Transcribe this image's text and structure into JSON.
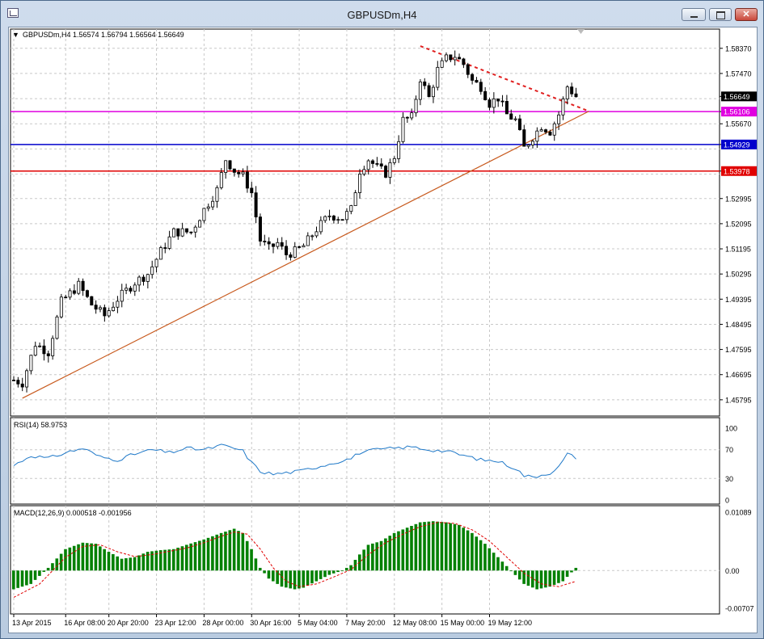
{
  "window": {
    "title": "GBPUSDm,H4",
    "buttons": {
      "minimize": "minimize-icon",
      "maximize": "maximize-icon",
      "close": "close-icon"
    },
    "close_glyph": "✕"
  },
  "chart_header": {
    "menu_glyph": "▼",
    "symbol_info": "GBPUSDm,H4  1.56574 1.56794 1.56564 1.56649"
  },
  "price_axis": {
    "labels": [
      "1.58370",
      "1.57470",
      "1.56649",
      "1.56106",
      "1.55670",
      "1.54929",
      "1.53978",
      "1.52995",
      "1.52095",
      "1.51195",
      "1.50295",
      "1.49395",
      "1.48495",
      "1.47595",
      "1.46695",
      "1.45795"
    ],
    "current_price": "1.56649"
  },
  "horizontal_lines": [
    {
      "name": "magenta-level",
      "price": 1.56106,
      "label": "1.56106",
      "color": "#e000e0"
    },
    {
      "name": "blue-level",
      "price": 1.54929,
      "label": "1.54929",
      "color": "#0000cc"
    },
    {
      "name": "red-level",
      "price": 1.53978,
      "label": "1.53978",
      "color": "#e00000"
    }
  ],
  "trendlines": [
    {
      "name": "support-trendline",
      "color": "#c85a1e",
      "style": "solid",
      "from": {
        "bar": 2,
        "price": 1.4585
      },
      "to": {
        "bar": 133,
        "price": 1.5612
      }
    },
    {
      "name": "resistance-trendline",
      "color": "#e02020",
      "style": "dashed",
      "from": {
        "bar": 94,
        "price": 1.5845
      },
      "to": {
        "bar": 133,
        "price": 1.5612
      }
    }
  ],
  "time_axis": {
    "labels": [
      {
        "bar": 0,
        "label": "13 Apr 2015"
      },
      {
        "bar": 12,
        "label": "16 Apr 08:00"
      },
      {
        "bar": 22,
        "label": "20 Apr 20:00"
      },
      {
        "bar": 33,
        "label": "23 Apr 12:00"
      },
      {
        "bar": 44,
        "label": "28 Apr 00:00"
      },
      {
        "bar": 55,
        "label": "30 Apr 16:00"
      },
      {
        "bar": 66,
        "label": "5 May 04:00"
      },
      {
        "bar": 77,
        "label": "7 May 20:00"
      },
      {
        "bar": 88,
        "label": "12 May 08:00"
      },
      {
        "bar": 99,
        "label": "15 May 00:00"
      },
      {
        "bar": 110,
        "label": "19 May 12:00"
      }
    ]
  },
  "rsi": {
    "label": "RSI(14) 58.9753",
    "levels": [
      "100",
      "70",
      "30",
      "0"
    ],
    "color": "#1e78c8"
  },
  "macd": {
    "label": "MACD(12,26,9) 0.000518 -0.001956",
    "levels": [
      "0.01089",
      "0.00",
      "-0.00707"
    ],
    "histogram_color": "#008000",
    "signal_color": "#e00000"
  },
  "chart_data": {
    "type": "candlestick",
    "symbol": "GBPUSDm",
    "timeframe": "H4",
    "ylim": [
      1.453,
      1.59
    ],
    "close_anchors": [
      [
        0,
        1.465
      ],
      [
        2,
        1.464
      ],
      [
        5,
        1.478
      ],
      [
        8,
        1.475
      ],
      [
        11,
        1.493
      ],
      [
        15,
        1.499
      ],
      [
        18,
        1.492
      ],
      [
        21,
        1.488
      ],
      [
        24,
        1.494
      ],
      [
        28,
        1.5
      ],
      [
        31,
        1.503
      ],
      [
        34,
        1.511
      ],
      [
        37,
        1.518
      ],
      [
        41,
        1.518
      ],
      [
        44,
        1.526
      ],
      [
        47,
        1.533
      ],
      [
        49,
        1.544
      ],
      [
        51,
        1.54
      ],
      [
        53,
        1.538
      ],
      [
        55,
        1.532
      ],
      [
        57,
        1.515
      ],
      [
        59,
        1.512
      ],
      [
        61,
        1.514
      ],
      [
        63,
        1.51
      ],
      [
        65,
        1.511
      ],
      [
        67,
        1.513
      ],
      [
        70,
        1.519
      ],
      [
        73,
        1.524
      ],
      [
        76,
        1.523
      ],
      [
        78,
        1.526
      ],
      [
        80,
        1.54
      ],
      [
        82,
        1.544
      ],
      [
        84,
        1.541
      ],
      [
        86,
        1.539
      ],
      [
        88,
        1.545
      ],
      [
        90,
        1.558
      ],
      [
        92,
        1.559
      ],
      [
        94,
        1.573
      ],
      [
        96,
        1.566
      ],
      [
        98,
        1.576
      ],
      [
        100,
        1.58
      ],
      [
        102,
        1.581
      ],
      [
        104,
        1.578
      ],
      [
        106,
        1.572
      ],
      [
        108,
        1.57
      ],
      [
        110,
        1.564
      ],
      [
        112,
        1.566
      ],
      [
        114,
        1.56
      ],
      [
        116,
        1.558
      ],
      [
        118,
        1.548
      ],
      [
        120,
        1.552
      ],
      [
        122,
        1.556
      ],
      [
        124,
        1.554
      ],
      [
        126,
        1.56
      ],
      [
        128,
        1.57
      ],
      [
        130,
        1.5665
      ]
    ],
    "rsi_anchors": [
      [
        0,
        48
      ],
      [
        4,
        62
      ],
      [
        8,
        58
      ],
      [
        12,
        66
      ],
      [
        16,
        72
      ],
      [
        20,
        60
      ],
      [
        24,
        56
      ],
      [
        28,
        64
      ],
      [
        32,
        70
      ],
      [
        36,
        66
      ],
      [
        40,
        72
      ],
      [
        44,
        70
      ],
      [
        48,
        76
      ],
      [
        51,
        72
      ],
      [
        53,
        68
      ],
      [
        55,
        52
      ],
      [
        57,
        40
      ],
      [
        60,
        36
      ],
      [
        63,
        38
      ],
      [
        66,
        40
      ],
      [
        70,
        46
      ],
      [
        74,
        52
      ],
      [
        78,
        58
      ],
      [
        80,
        66
      ],
      [
        84,
        70
      ],
      [
        88,
        72
      ],
      [
        92,
        74
      ],
      [
        96,
        70
      ],
      [
        100,
        68
      ],
      [
        104,
        62
      ],
      [
        108,
        56
      ],
      [
        112,
        54
      ],
      [
        116,
        44
      ],
      [
        118,
        34
      ],
      [
        120,
        32
      ],
      [
        124,
        38
      ],
      [
        126,
        46
      ],
      [
        128,
        64
      ],
      [
        130,
        59
      ]
    ],
    "macd_anchors": [
      [
        0,
        -0.0035
      ],
      [
        4,
        -0.0025
      ],
      [
        8,
        0.0005
      ],
      [
        12,
        0.004
      ],
      [
        16,
        0.0052
      ],
      [
        19,
        0.005
      ],
      [
        22,
        0.0035
      ],
      [
        25,
        0.0022
      ],
      [
        28,
        0.0025
      ],
      [
        31,
        0.0035
      ],
      [
        34,
        0.0038
      ],
      [
        37,
        0.004
      ],
      [
        40,
        0.0048
      ],
      [
        44,
        0.0058
      ],
      [
        48,
        0.007
      ],
      [
        51,
        0.0078
      ],
      [
        53,
        0.007
      ],
      [
        55,
        0.004
      ],
      [
        57,
        0.0005
      ],
      [
        59,
        -0.0015
      ],
      [
        62,
        -0.003
      ],
      [
        65,
        -0.0035
      ],
      [
        67,
        -0.0032
      ],
      [
        70,
        -0.002
      ],
      [
        73,
        -0.0008
      ],
      [
        76,
        0.0
      ],
      [
        78,
        0.001
      ],
      [
        80,
        0.003
      ],
      [
        82,
        0.0048
      ],
      [
        85,
        0.0055
      ],
      [
        88,
        0.007
      ],
      [
        91,
        0.008
      ],
      [
        94,
        0.009
      ],
      [
        97,
        0.0092
      ],
      [
        100,
        0.009
      ],
      [
        103,
        0.0085
      ],
      [
        106,
        0.007
      ],
      [
        109,
        0.005
      ],
      [
        112,
        0.0025
      ],
      [
        115,
        0.0
      ],
      [
        118,
        -0.0025
      ],
      [
        121,
        -0.0035
      ],
      [
        124,
        -0.003
      ],
      [
        127,
        -0.002
      ],
      [
        130,
        0.0005
      ]
    ],
    "signal_anchors": [
      [
        0,
        -0.005
      ],
      [
        6,
        -0.0025
      ],
      [
        12,
        0.0025
      ],
      [
        16,
        0.0045
      ],
      [
        20,
        0.0048
      ],
      [
        24,
        0.0035
      ],
      [
        28,
        0.0026
      ],
      [
        32,
        0.003
      ],
      [
        36,
        0.0036
      ],
      [
        40,
        0.0042
      ],
      [
        44,
        0.0052
      ],
      [
        48,
        0.0064
      ],
      [
        51,
        0.0072
      ],
      [
        54,
        0.0068
      ],
      [
        57,
        0.004
      ],
      [
        60,
        0.0005
      ],
      [
        63,
        -0.002
      ],
      [
        66,
        -0.003
      ],
      [
        70,
        -0.0025
      ],
      [
        74,
        -0.0012
      ],
      [
        78,
        0.0002
      ],
      [
        82,
        0.003
      ],
      [
        86,
        0.0052
      ],
      [
        90,
        0.0068
      ],
      [
        94,
        0.0082
      ],
      [
        98,
        0.009
      ],
      [
        102,
        0.0088
      ],
      [
        106,
        0.0076
      ],
      [
        110,
        0.0055
      ],
      [
        114,
        0.0025
      ],
      [
        118,
        -0.0005
      ],
      [
        122,
        -0.0025
      ],
      [
        126,
        -0.003
      ],
      [
        130,
        -0.002
      ]
    ],
    "bar_count": 131
  }
}
